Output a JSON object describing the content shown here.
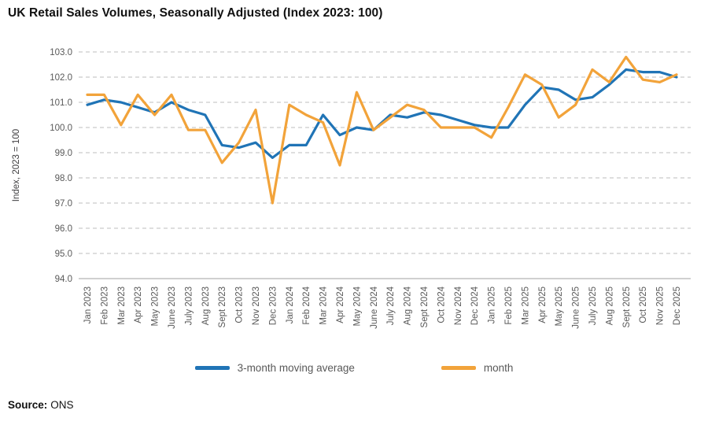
{
  "title": "UK Retail Sales Volumes, Seasonally Adjusted (Index 2023: 100)",
  "footer": {
    "source_label": "Source:",
    "source_value": "ONS"
  },
  "colors": {
    "blue": "#2074B6",
    "orange": "#F2A33A",
    "grid": "#C9C9C9",
    "axis": "#B5B5B5",
    "tick_text": "#595959",
    "axis_title_text": "#414042"
  },
  "chart_data": {
    "type": "line",
    "title": "UK Retail Sales Volumes, Seasonally Adjusted (Index 2023: 100)",
    "xlabel": "",
    "ylabel": "Index, 2023 = 100",
    "ylim": [
      94.0,
      103.0
    ],
    "ytick_step": 1.0,
    "grid": "horizontal-dashed",
    "legend_position": "bottom",
    "categories": [
      "Jan 2023",
      "Feb 2023",
      "Mar 2023",
      "Apr 2023",
      "May 2023",
      "June 2023",
      "July 2023",
      "Aug 2023",
      "Sept 2023",
      "Oct 2023",
      "Nov 2023",
      "Dec 2023",
      "Jan 2024",
      "Feb 2024",
      "Mar 2024",
      "Apr 2024",
      "May 2024",
      "June 2024",
      "July 2024",
      "Aug 2024",
      "Sept 2024",
      "Oct 2024",
      "Nov 2024",
      "Dec 2024",
      "Jan 2025",
      "Feb 2025",
      "Mar 2025",
      "Apr 2025",
      "May 2025",
      "June 2025",
      "July 2025",
      "Aug 2025",
      "Sept 2025",
      "Oct 2025",
      "Nov 2025",
      "Dec 2025"
    ],
    "series": [
      {
        "name": "3-month moving average",
        "color": "#2074B6",
        "values": [
          100.9,
          101.1,
          101.0,
          100.8,
          100.6,
          101.0,
          100.7,
          100.5,
          99.3,
          99.2,
          99.4,
          98.8,
          99.3,
          99.3,
          100.5,
          99.7,
          100.0,
          99.9,
          100.5,
          100.4,
          100.6,
          100.5,
          100.3,
          100.1,
          100.0,
          100.0,
          100.9,
          101.6,
          101.5,
          101.1,
          101.2,
          101.7,
          102.3,
          102.2,
          102.2,
          102.0
        ]
      },
      {
        "name": "month",
        "color": "#F2A33A",
        "values": [
          101.3,
          101.3,
          100.1,
          101.3,
          100.5,
          101.3,
          99.9,
          99.9,
          98.6,
          99.4,
          100.7,
          97.0,
          100.9,
          100.5,
          100.2,
          98.5,
          101.4,
          99.9,
          100.4,
          100.9,
          100.7,
          100.0,
          100.0,
          100.0,
          99.6,
          100.8,
          102.1,
          101.7,
          100.4,
          100.9,
          102.3,
          101.8,
          102.8,
          101.9,
          101.8,
          102.1
        ]
      }
    ]
  }
}
